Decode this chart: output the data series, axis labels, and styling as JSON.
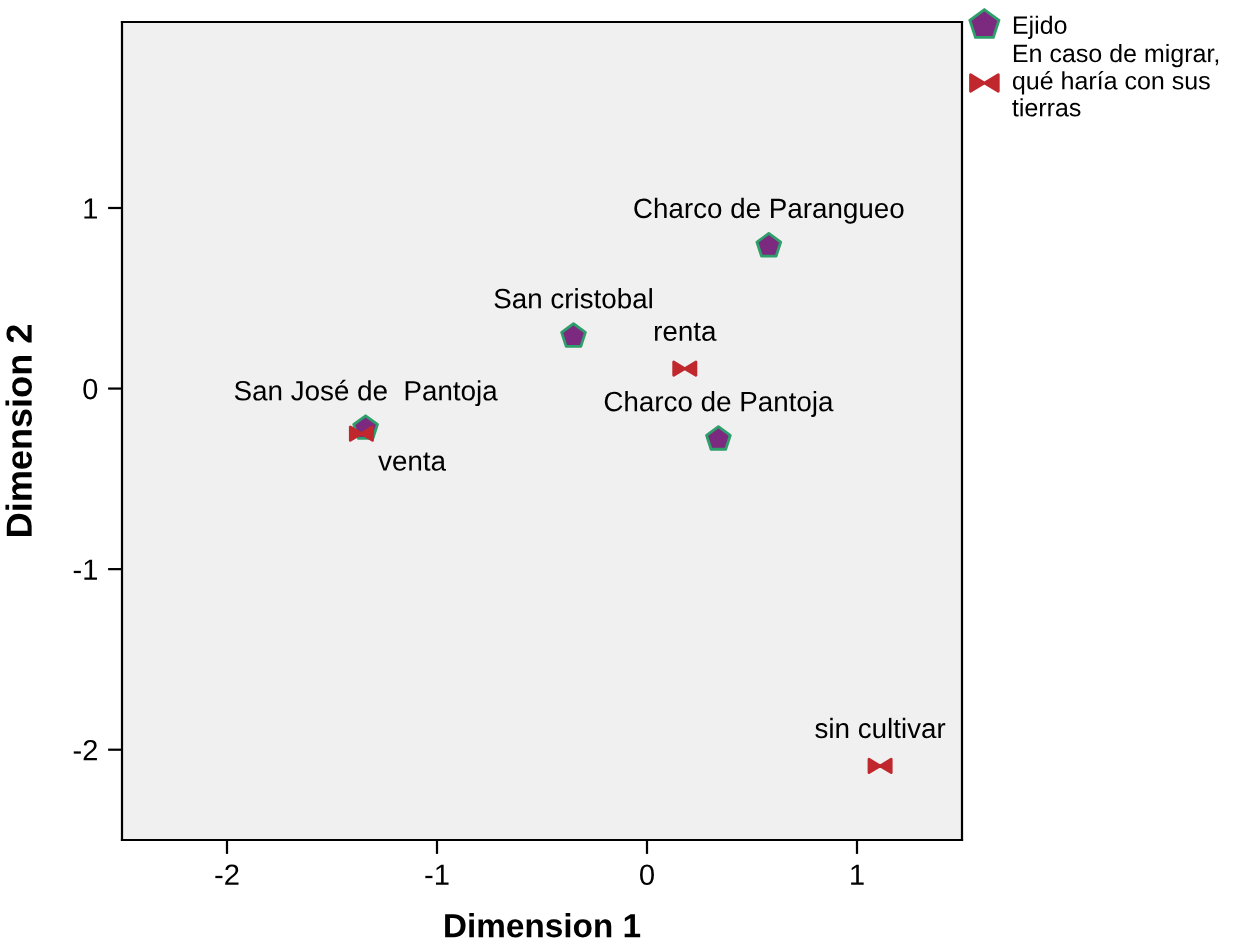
{
  "chart_data": {
    "type": "scatter",
    "xlabel": "Dimension 1",
    "ylabel": "Dimension 2",
    "xlim": [
      -2.5,
      1.5
    ],
    "ylim": [
      -2.5,
      2.03
    ],
    "xticks": [
      -2,
      -1,
      0,
      1
    ],
    "yticks": [
      -2,
      -1,
      0,
      1
    ],
    "grid": false,
    "legend": "top right",
    "series": [
      {
        "name": "Ejido",
        "color": "#7b2a7f",
        "x": [
          -1.34,
          -0.35,
          0.58,
          0.34
        ],
        "values": [
          -0.22,
          0.29,
          0.79,
          -0.28
        ]
      },
      {
        "name": "En caso de migrar,\nqué haría con sus\ntierras",
        "color": "#c0282d",
        "x": [
          -1.36,
          0.18,
          1.11
        ],
        "values": [
          -0.25,
          0.11,
          -2.09
        ]
      }
    ],
    "annotations": [
      {
        "text": "San José de  Pantoja",
        "x": -1.34,
        "y": -0.22
      },
      {
        "text": "San cristobal",
        "x": -0.35,
        "y": 0.29
      },
      {
        "text": "Charco de Parangueo",
        "x": 0.58,
        "y": 0.79
      },
      {
        "text": "Charco de Pantoja",
        "x": 0.34,
        "y": -0.28
      },
      {
        "text": "venta",
        "x": -1.36,
        "y": -0.25
      },
      {
        "text": "renta",
        "x": 0.18,
        "y": 0.11
      },
      {
        "text": "sin cultivar",
        "x": 1.11,
        "y": -2.09
      }
    ]
  }
}
